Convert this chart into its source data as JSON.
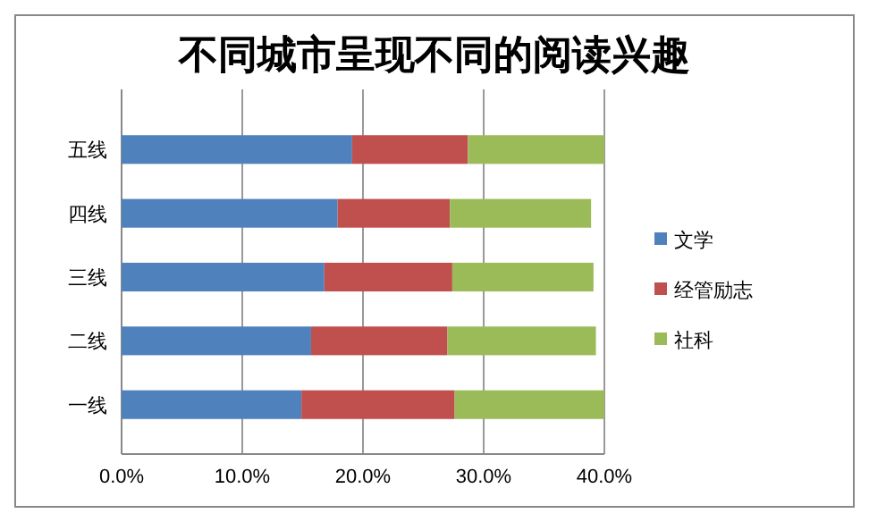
{
  "chart_data": {
    "type": "bar",
    "title": "不同城市呈现不同的阅读兴趣",
    "orientation": "horizontal",
    "stacked": true,
    "categories": [
      "五线",
      "四线",
      "三线",
      "二线",
      "一线"
    ],
    "series": [
      {
        "name": "文学",
        "color": "#4f81bd",
        "values": [
          19.1,
          17.9,
          16.8,
          15.7,
          14.9
        ]
      },
      {
        "name": "经管励志",
        "color": "#c0504d",
        "values": [
          9.6,
          9.3,
          10.6,
          11.3,
          12.7
        ]
      },
      {
        "name": "社科",
        "color": "#9bbb59",
        "values": [
          11.3,
          11.7,
          11.7,
          12.3,
          12.4
        ]
      }
    ],
    "xlim": [
      0,
      40
    ],
    "xticks": [
      {
        "value": 0,
        "label": "0.0%"
      },
      {
        "value": 10,
        "label": "10.0%"
      },
      {
        "value": 20,
        "label": "20.0%"
      },
      {
        "value": 30,
        "label": "30.0%"
      },
      {
        "value": 40,
        "label": "40.0%"
      }
    ],
    "grid": "x",
    "legend": "right"
  }
}
